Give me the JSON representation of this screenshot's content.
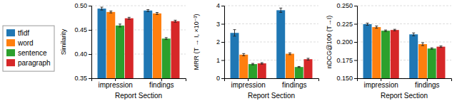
{
  "chart_data": [
    {
      "type": "bar",
      "xlabel": "Report Section",
      "ylabel": "Similarity",
      "categories": [
        "impression",
        "findings"
      ],
      "ylim": [
        0.35,
        0.5
      ],
      "yticks": [
        0.35,
        {
          "value": 0.4,
          "label": "0.40"
        },
        0.45,
        {
          "value": 0.5,
          "label": "0.50"
        }
      ],
      "grid": true,
      "legend": "left",
      "series": [
        {
          "name": "tfidf",
          "values": [
            0.494,
            0.49
          ],
          "errors": [
            0.003,
            0.002
          ]
        },
        {
          "name": "word",
          "values": [
            0.487,
            0.484
          ],
          "errors": [
            0.002,
            0.002
          ]
        },
        {
          "name": "sentence",
          "values": [
            0.459,
            0.432
          ],
          "errors": [
            0.003,
            0.002
          ]
        },
        {
          "name": "paragraph",
          "values": [
            0.474,
            0.468
          ],
          "errors": [
            0.002,
            0.002
          ]
        }
      ]
    },
    {
      "type": "bar",
      "xlabel": "Report Section",
      "ylabel": "MRR (T → I, ×10⁻³)",
      "categories": [
        "impression",
        "findings"
      ],
      "ylim": [
        0,
        4
      ],
      "yticks": [
        0,
        1,
        2,
        3,
        4
      ],
      "grid": true,
      "series": [
        {
          "values": [
            2.5,
            3.75
          ],
          "errors": [
            0.18,
            0.12
          ]
        },
        {
          "values": [
            1.3,
            1.35
          ],
          "errors": [
            0.06,
            0.05
          ]
        },
        {
          "values": [
            0.78,
            0.62
          ],
          "errors": [
            0.04,
            0.03
          ]
        },
        {
          "values": [
            0.82,
            1.05
          ],
          "errors": [
            0.04,
            0.05
          ]
        }
      ]
    },
    {
      "type": "bar",
      "xlabel": "Report Section",
      "ylabel": "nDCG@100 (T→I)",
      "categories": [
        "impression",
        "findings"
      ],
      "ylim": [
        0.15,
        0.25
      ],
      "yticks": [
        {
          "value": 0.15,
          "label": "0.150"
        },
        0.175,
        {
          "value": 0.2,
          "label": "0.200"
        },
        0.225,
        {
          "value": 0.25,
          "label": "0.250"
        }
      ],
      "grid": true,
      "series": [
        {
          "values": [
            0.2245,
            0.2105
          ],
          "errors": [
            0.0015,
            0.002
          ]
        },
        {
          "values": [
            0.2205,
            0.197
          ],
          "errors": [
            0.0015,
            0.002
          ]
        },
        {
          "values": [
            0.2155,
            0.191
          ],
          "errors": [
            0.001,
            0.001
          ]
        },
        {
          "values": [
            0.2165,
            0.1935
          ],
          "errors": [
            0.001,
            0.001
          ]
        }
      ]
    }
  ]
}
